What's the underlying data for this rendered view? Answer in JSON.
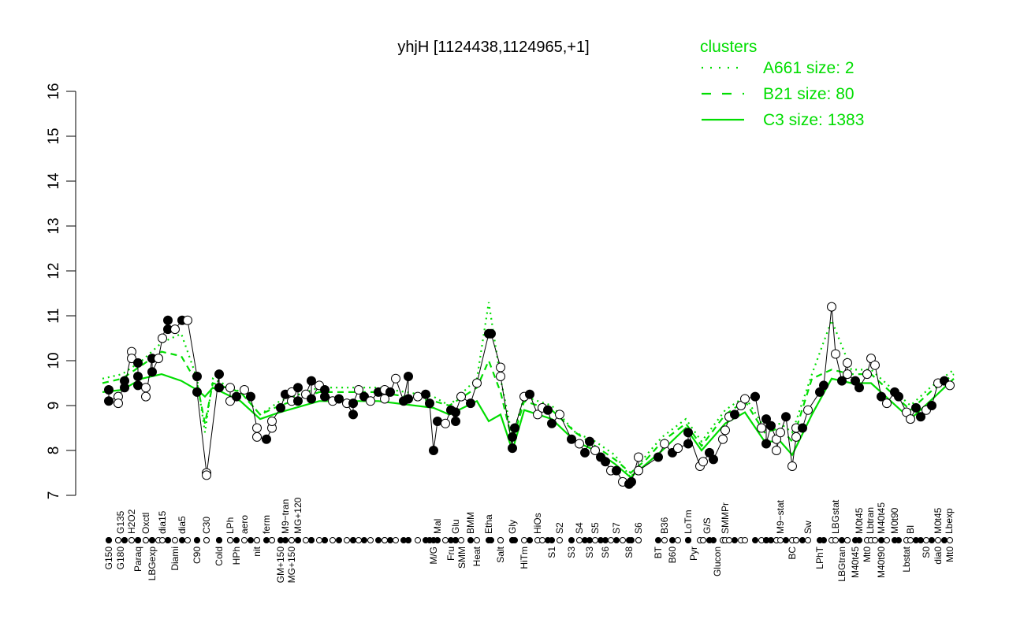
{
  "chart_data": {
    "type": "line",
    "title": "yhjH [1124438,1124965,+1]",
    "xlabel": "",
    "ylabel": "",
    "ylim": [
      7,
      16
    ],
    "xlim": [
      0,
      216
    ],
    "yticks": [
      "7",
      "8",
      "9",
      "10",
      "11",
      "12",
      "13",
      "14",
      "15",
      "16"
    ],
    "grid": false,
    "legend": {
      "title": "clusters",
      "placement": "top-right",
      "color": "#00dd00",
      "entries": [
        {
          "label": "A661 size: 2",
          "style": "dotted"
        },
        {
          "label": "B21 size: 80",
          "style": "dashed"
        },
        {
          "label": "C3 size: 1383",
          "style": "solid"
        }
      ]
    },
    "x_labels_bottom": [
      {
        "x": 1.6,
        "label": "G150"
      },
      {
        "x": 4.6,
        "label": "G180"
      },
      {
        "x": 9,
        "label": "Paraq"
      },
      {
        "x": 12.6,
        "label": "LBGexp"
      },
      {
        "x": 18.4,
        "label": "Diami"
      },
      {
        "x": 24,
        "label": "C90"
      },
      {
        "x": 29.6,
        "label": "Cold"
      },
      {
        "x": 34,
        "label": "HPh"
      },
      {
        "x": 39.2,
        "label": "nit"
      },
      {
        "x": 45.2,
        "label": "GM+150"
      },
      {
        "x": 48,
        "label": "MG+150"
      },
      {
        "x": 84,
        "label": "M/G"
      },
      {
        "x": 88.4,
        "label": "Fru"
      },
      {
        "x": 91,
        "label": "SMM"
      },
      {
        "x": 95,
        "label": "Heat"
      },
      {
        "x": 101,
        "label": "Salt"
      },
      {
        "x": 107,
        "label": "HiTm"
      },
      {
        "x": 114,
        "label": "S1"
      },
      {
        "x": 119,
        "label": "S3"
      },
      {
        "x": 123.6,
        "label": "S3"
      },
      {
        "x": 127.6,
        "label": "S6"
      },
      {
        "x": 133.6,
        "label": "S8"
      },
      {
        "x": 141,
        "label": "BT"
      },
      {
        "x": 144.6,
        "label": "B60"
      },
      {
        "x": 150,
        "label": "Pyr"
      },
      {
        "x": 156,
        "label": "Glucon"
      },
      {
        "x": 175,
        "label": "BC"
      },
      {
        "x": 182,
        "label": "LPhT"
      },
      {
        "x": 187.6,
        "label": "LBGtran"
      },
      {
        "x": 191,
        "label": "M40t45"
      },
      {
        "x": 194,
        "label": "Mt0"
      },
      {
        "x": 197.6,
        "label": "M40t90"
      },
      {
        "x": 204,
        "label": "Lbstat"
      },
      {
        "x": 209,
        "label": "S0"
      },
      {
        "x": 212,
        "label": "dia0"
      },
      {
        "x": 215,
        "label": "Mt0"
      }
    ],
    "x_labels_top": [
      {
        "x": 4.6,
        "label": "G135"
      },
      {
        "x": 7.4,
        "label": "H2O2"
      },
      {
        "x": 11,
        "label": "Oxctl"
      },
      {
        "x": 15.2,
        "label": "dia15"
      },
      {
        "x": 20.2,
        "label": "dia5"
      },
      {
        "x": 26.4,
        "label": "C30"
      },
      {
        "x": 32.4,
        "label": "LPh"
      },
      {
        "x": 36,
        "label": "aero"
      },
      {
        "x": 41.6,
        "label": "ferm"
      },
      {
        "x": 46.4,
        "label": "M9−tran"
      },
      {
        "x": 49.6,
        "label": "MG+120"
      },
      {
        "x": 85,
        "label": "Mal"
      },
      {
        "x": 89.6,
        "label": "Glu"
      },
      {
        "x": 93.4,
        "label": "BMM"
      },
      {
        "x": 98,
        "label": "Etha"
      },
      {
        "x": 104,
        "label": "Gly"
      },
      {
        "x": 110.4,
        "label": "HiOs"
      },
      {
        "x": 116,
        "label": "S2"
      },
      {
        "x": 121,
        "label": "S4"
      },
      {
        "x": 125,
        "label": "S5"
      },
      {
        "x": 130.4,
        "label": "S7"
      },
      {
        "x": 136,
        "label": "S6"
      },
      {
        "x": 142.6,
        "label": "B36"
      },
      {
        "x": 148.6,
        "label": "LoTm"
      },
      {
        "x": 153.4,
        "label": "G/S"
      },
      {
        "x": 158,
        "label": "SMMPr"
      },
      {
        "x": 172,
        "label": "M9−stat"
      },
      {
        "x": 179,
        "label": "Sw"
      },
      {
        "x": 186,
        "label": "LBGstat"
      },
      {
        "x": 192,
        "label": "M0t45"
      },
      {
        "x": 194,
        "label": "Lbtran"
      },
      {
        "x": 196,
        "label": "M40t45"
      },
      {
        "x": 201,
        "label": "M0t90"
      },
      {
        "x": 205,
        "label": "BI"
      },
      {
        "x": 212,
        "label": "M0t45"
      },
      {
        "x": 213.6,
        "label": "Lbexp"
      }
    ],
    "points": [
      [
        1.6,
        9.35
      ],
      [
        1.6,
        9.1
      ],
      [
        4,
        9.2
      ],
      [
        4,
        9.05
      ],
      [
        5.6,
        9.55
      ],
      [
        5.6,
        9.4
      ],
      [
        7.4,
        10.2
      ],
      [
        7.4,
        10.05
      ],
      [
        9,
        9.95
      ],
      [
        9,
        9.65
      ],
      [
        9,
        9.45
      ],
      [
        11,
        9.4
      ],
      [
        11,
        9.2
      ],
      [
        12.6,
        10.05
      ],
      [
        12.6,
        9.75
      ],
      [
        14.2,
        10.05
      ],
      [
        15.2,
        10.5
      ],
      [
        16.6,
        10.9
      ],
      [
        16.6,
        10.7
      ],
      [
        18.4,
        10.7
      ],
      [
        20.2,
        10.9
      ],
      [
        21.6,
        10.9
      ],
      [
        24,
        9.65
      ],
      [
        24,
        9.3
      ],
      [
        26.4,
        7.5
      ],
      [
        26.4,
        7.45
      ],
      [
        29.6,
        9.7
      ],
      [
        29.6,
        9.4
      ],
      [
        32.4,
        9.4
      ],
      [
        32.4,
        9.1
      ],
      [
        34,
        9.2
      ],
      [
        36,
        9.35
      ],
      [
        37.6,
        9.2
      ],
      [
        39.2,
        8.5
      ],
      [
        39.2,
        8.3
      ],
      [
        41.6,
        8.25
      ],
      [
        43,
        8.5
      ],
      [
        43,
        8.65
      ],
      [
        45.2,
        8.95
      ],
      [
        46.4,
        9.25
      ],
      [
        48,
        9.1
      ],
      [
        48,
        9.3
      ],
      [
        49.6,
        9.4
      ],
      [
        49.6,
        9.1
      ],
      [
        51.6,
        9.25
      ],
      [
        53,
        9.55
      ],
      [
        53,
        9.15
      ],
      [
        55,
        9.45
      ],
      [
        56.4,
        9.2
      ],
      [
        56.4,
        9.35
      ],
      [
        58.4,
        9.1
      ],
      [
        60,
        9.15
      ],
      [
        62,
        9.05
      ],
      [
        63.6,
        8.8
      ],
      [
        63.6,
        9.05
      ],
      [
        65,
        9.35
      ],
      [
        66.4,
        9.2
      ],
      [
        68,
        9.1
      ],
      [
        70,
        9.3
      ],
      [
        71.6,
        9.35
      ],
      [
        71.6,
        9.15
      ],
      [
        73,
        9.3
      ],
      [
        74.4,
        9.6
      ],
      [
        76.4,
        9.1
      ],
      [
        77.6,
        9.65
      ],
      [
        77.6,
        9.15
      ],
      [
        80,
        9.2
      ],
      [
        82,
        9.25
      ],
      [
        83,
        9.05
      ],
      [
        84,
        8.0
      ],
      [
        85,
        8.65
      ],
      [
        87,
        8.6
      ],
      [
        88.4,
        8.9
      ],
      [
        89.6,
        8.65
      ],
      [
        89.6,
        8.85
      ],
      [
        91,
        9.2
      ],
      [
        93.4,
        9.05
      ],
      [
        95,
        9.5
      ],
      [
        98,
        10.6
      ],
      [
        98.6,
        10.6
      ],
      [
        101,
        9.85
      ],
      [
        101,
        9.65
      ],
      [
        104,
        8.05
      ],
      [
        104,
        8.3
      ],
      [
        104.6,
        8.5
      ],
      [
        107,
        9.2
      ],
      [
        108.4,
        9.25
      ],
      [
        110.4,
        8.8
      ],
      [
        111.6,
        8.95
      ],
      [
        113,
        8.9
      ],
      [
        114,
        8.6
      ],
      [
        116,
        8.8
      ],
      [
        119,
        8.25
      ],
      [
        121,
        8.15
      ],
      [
        122.4,
        7.95
      ],
      [
        123.6,
        8.2
      ],
      [
        125,
        8.0
      ],
      [
        126.4,
        7.85
      ],
      [
        127.6,
        7.75
      ],
      [
        129,
        7.55
      ],
      [
        130.4,
        7.55
      ],
      [
        132,
        7.3
      ],
      [
        133.6,
        7.25
      ],
      [
        134.2,
        7.3
      ],
      [
        136,
        7.85
      ],
      [
        136,
        7.55
      ],
      [
        141,
        7.85
      ],
      [
        142.6,
        8.15
      ],
      [
        144.6,
        7.95
      ],
      [
        146,
        8.05
      ],
      [
        148.6,
        8.15
      ],
      [
        148.6,
        8.4
      ],
      [
        151.6,
        7.65
      ],
      [
        152.4,
        7.75
      ],
      [
        154,
        7.95
      ],
      [
        155,
        7.8
      ],
      [
        157.4,
        8.25
      ],
      [
        158,
        8.45
      ],
      [
        159,
        8.75
      ],
      [
        160.4,
        8.8
      ],
      [
        162,
        9.0
      ],
      [
        163,
        9.15
      ],
      [
        165.6,
        9.2
      ],
      [
        167.2,
        8.5
      ],
      [
        168.4,
        8.7
      ],
      [
        168.4,
        8.15
      ],
      [
        169.6,
        8.55
      ],
      [
        171,
        8.25
      ],
      [
        171,
        8.0
      ],
      [
        172,
        8.4
      ],
      [
        173.4,
        8.75
      ],
      [
        175,
        7.65
      ],
      [
        176,
        8.3
      ],
      [
        176,
        8.5
      ],
      [
        177.6,
        8.5
      ],
      [
        179,
        8.9
      ],
      [
        182,
        9.3
      ],
      [
        183,
        9.45
      ],
      [
        185,
        11.2
      ],
      [
        186,
        10.15
      ],
      [
        187.6,
        9.55
      ],
      [
        189,
        9.95
      ],
      [
        189,
        9.7
      ],
      [
        191,
        9.55
      ],
      [
        192,
        9.4
      ],
      [
        194,
        9.7
      ],
      [
        195,
        10.05
      ],
      [
        196,
        9.9
      ],
      [
        197.6,
        9.2
      ],
      [
        199,
        9.05
      ],
      [
        201,
        9.3
      ],
      [
        202,
        9.2
      ],
      [
        204,
        8.85
      ],
      [
        205,
        8.7
      ],
      [
        206.4,
        8.95
      ],
      [
        207.6,
        8.75
      ],
      [
        209,
        8.9
      ],
      [
        210.4,
        9.0
      ],
      [
        212,
        9.5
      ],
      [
        213.6,
        9.55
      ],
      [
        215,
        9.45
      ]
    ],
    "series": [
      {
        "name": "C3 size: 1383",
        "style": "solid",
        "color": "#00dd00",
        "values": [
          [
            0,
            9.3
          ],
          [
            5,
            9.35
          ],
          [
            10,
            9.6
          ],
          [
            15,
            9.7
          ],
          [
            20,
            9.55
          ],
          [
            24,
            9.35
          ],
          [
            26,
            9.2
          ],
          [
            28,
            9.4
          ],
          [
            35,
            9.1
          ],
          [
            40,
            8.7
          ],
          [
            45,
            8.85
          ],
          [
            55,
            9.1
          ],
          [
            70,
            9.1
          ],
          [
            84,
            8.95
          ],
          [
            88,
            8.8
          ],
          [
            95,
            9.1
          ],
          [
            98,
            8.65
          ],
          [
            101,
            8.8
          ],
          [
            104,
            8.0
          ],
          [
            107,
            8.9
          ],
          [
            114,
            8.7
          ],
          [
            120,
            8.2
          ],
          [
            125,
            8.0
          ],
          [
            130,
            7.7
          ],
          [
            134,
            7.4
          ],
          [
            138,
            7.7
          ],
          [
            142,
            8.0
          ],
          [
            148,
            8.5
          ],
          [
            152,
            8.0
          ],
          [
            158,
            8.6
          ],
          [
            163,
            8.85
          ],
          [
            168,
            8.2
          ],
          [
            172,
            8.2
          ],
          [
            175,
            7.9
          ],
          [
            180,
            8.8
          ],
          [
            185,
            9.6
          ],
          [
            190,
            9.5
          ],
          [
            195,
            9.5
          ],
          [
            200,
            9.1
          ],
          [
            205,
            8.7
          ],
          [
            210,
            9.1
          ],
          [
            216,
            9.6
          ]
        ]
      },
      {
        "name": "B21 size: 80",
        "style": "dashed",
        "color": "#00dd00",
        "values": [
          [
            0,
            9.5
          ],
          [
            5,
            9.6
          ],
          [
            10,
            9.9
          ],
          [
            15,
            10.2
          ],
          [
            20,
            10.1
          ],
          [
            24,
            9.5
          ],
          [
            26,
            8.6
          ],
          [
            28,
            9.5
          ],
          [
            35,
            9.3
          ],
          [
            40,
            8.8
          ],
          [
            45,
            9.0
          ],
          [
            55,
            9.3
          ],
          [
            70,
            9.3
          ],
          [
            84,
            9.1
          ],
          [
            88,
            9.0
          ],
          [
            95,
            9.4
          ],
          [
            98,
            10.0
          ],
          [
            101,
            9.3
          ],
          [
            104,
            8.2
          ],
          [
            107,
            9.1
          ],
          [
            114,
            8.9
          ],
          [
            120,
            8.4
          ],
          [
            125,
            8.1
          ],
          [
            130,
            7.8
          ],
          [
            134,
            7.5
          ],
          [
            138,
            7.8
          ],
          [
            142,
            8.2
          ],
          [
            148,
            8.6
          ],
          [
            152,
            8.1
          ],
          [
            158,
            8.8
          ],
          [
            163,
            9.1
          ],
          [
            168,
            8.4
          ],
          [
            172,
            8.5
          ],
          [
            175,
            8.2
          ],
          [
            180,
            9.6
          ],
          [
            185,
            9.8
          ],
          [
            190,
            9.7
          ],
          [
            195,
            9.7
          ],
          [
            200,
            9.3
          ],
          [
            205,
            8.9
          ],
          [
            210,
            9.3
          ],
          [
            216,
            9.7
          ]
        ]
      },
      {
        "name": "A661 size: 2",
        "style": "dotted",
        "color": "#00dd00",
        "values": [
          [
            0,
            9.6
          ],
          [
            5,
            9.7
          ],
          [
            10,
            10.0
          ],
          [
            15,
            10.4
          ],
          [
            20,
            10.6
          ],
          [
            24,
            9.6
          ],
          [
            26,
            8.4
          ],
          [
            28,
            9.6
          ],
          [
            35,
            9.3
          ],
          [
            40,
            8.8
          ],
          [
            45,
            9.1
          ],
          [
            55,
            9.4
          ],
          [
            70,
            9.4
          ],
          [
            84,
            9.2
          ],
          [
            88,
            9.0
          ],
          [
            95,
            9.6
          ],
          [
            98,
            11.3
          ],
          [
            101,
            9.6
          ],
          [
            104,
            8.3
          ],
          [
            107,
            9.2
          ],
          [
            114,
            9.0
          ],
          [
            120,
            8.4
          ],
          [
            125,
            8.2
          ],
          [
            130,
            7.9
          ],
          [
            134,
            7.4
          ],
          [
            138,
            7.9
          ],
          [
            142,
            8.3
          ],
          [
            148,
            8.7
          ],
          [
            152,
            8.2
          ],
          [
            158,
            8.9
          ],
          [
            163,
            9.2
          ],
          [
            168,
            8.5
          ],
          [
            172,
            8.6
          ],
          [
            175,
            8.4
          ],
          [
            180,
            9.7
          ],
          [
            185,
            10.9
          ],
          [
            190,
            9.8
          ],
          [
            195,
            9.8
          ],
          [
            200,
            9.4
          ],
          [
            205,
            9.0
          ],
          [
            210,
            9.4
          ],
          [
            216,
            9.8
          ]
        ]
      }
    ]
  }
}
